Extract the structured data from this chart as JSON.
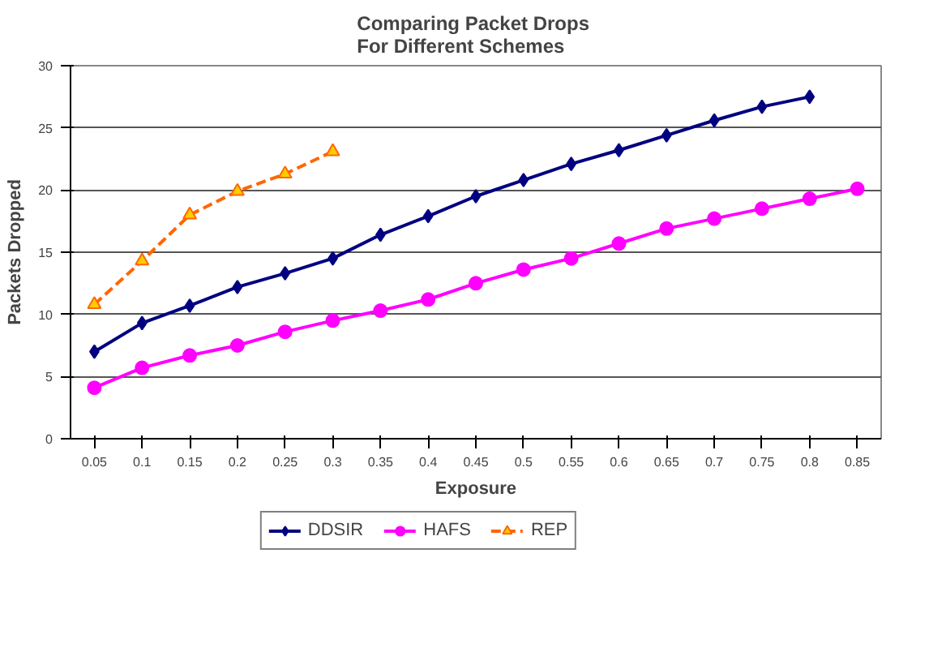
{
  "chart_data": {
    "type": "line",
    "title": "Comparing  Packet Drops\nFor Different Schemes",
    "xlabel": "Exposure",
    "ylabel": "Packets Dropped",
    "categories": [
      "0.05",
      "0.1",
      "0.15",
      "0.2",
      "0.25",
      "0.3",
      "0.35",
      "0.4",
      "0.45",
      "0.5",
      "0.55",
      "0.6",
      "0.65",
      "0.7",
      "0.75",
      "0.8",
      "0.85"
    ],
    "series": [
      {
        "name": "DDSIR",
        "color": "#000080",
        "marker": "diamond",
        "line_style": "solid",
        "values": [
          7,
          9.3,
          10.7,
          12.2,
          13.3,
          14.5,
          16.4,
          17.9,
          19.5,
          20.8,
          22.1,
          23.2,
          24.4,
          25.6,
          26.7,
          27.5,
          null
        ]
      },
      {
        "name": "HAFS",
        "color": "#ff00ff",
        "marker": "circle",
        "line_style": "solid",
        "values": [
          4.1,
          5.7,
          6.7,
          7.5,
          8.6,
          9.5,
          10.3,
          11.2,
          12.5,
          13.6,
          14.5,
          15.7,
          16.9,
          17.7,
          18.5,
          19.3,
          20.1
        ]
      },
      {
        "name": "REP",
        "color": "#ff6600",
        "marker": "triangle",
        "line_style": "dashed",
        "values": [
          10.8,
          14.3,
          18,
          19.9,
          21.3,
          23.1,
          null,
          null,
          null,
          null,
          null,
          null,
          null,
          null,
          null,
          null,
          null
        ]
      }
    ],
    "ylim": [
      0,
      30
    ],
    "yticks": [
      0,
      5,
      10,
      15,
      20,
      25,
      30
    ],
    "grid": "y",
    "legend": "bottom"
  }
}
